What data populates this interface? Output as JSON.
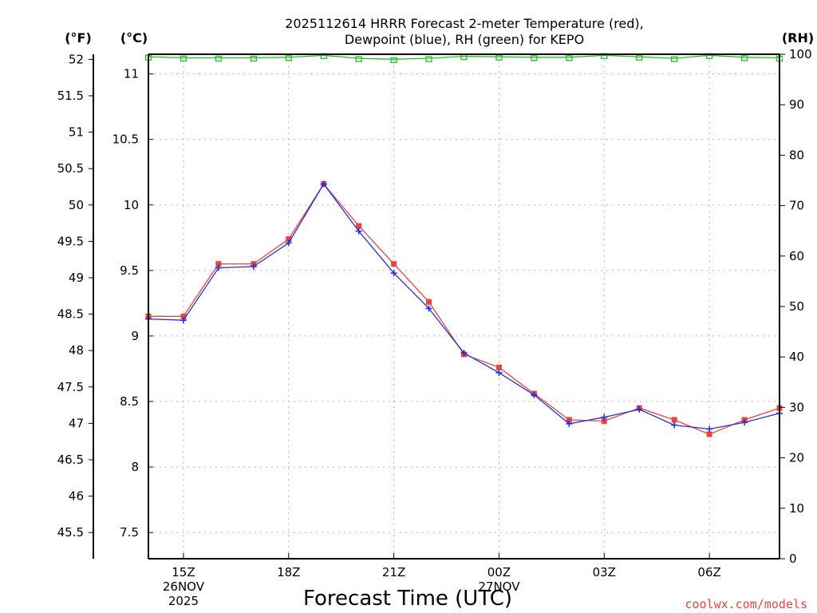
{
  "chart_data": {
    "type": "line",
    "title_line1": "2025112614 HRRR Forecast 2-meter Temperature (red),",
    "title_line2": "Dewpoint (blue), RH (green) for KEPO",
    "xlabel": "Forecast Time (UTC)",
    "credit": "coolwx.com/models",
    "units": {
      "fahrenheit": "(°F)",
      "celsius": "(°C)",
      "rh": "(RH)"
    },
    "x_hours": [
      14,
      15,
      16,
      17,
      18,
      19,
      20,
      21,
      22,
      23,
      24,
      25,
      26,
      27,
      28,
      29,
      30,
      31,
      32
    ],
    "x_range": [
      14,
      32
    ],
    "x_ticks": [
      {
        "hour": 15,
        "lines": [
          "15Z",
          "26NOV",
          "2025"
        ]
      },
      {
        "hour": 18,
        "lines": [
          "18Z"
        ]
      },
      {
        "hour": 21,
        "lines": [
          "21Z"
        ]
      },
      {
        "hour": 24,
        "lines": [
          "00Z",
          "27NOV"
        ]
      },
      {
        "hour": 27,
        "lines": [
          "03Z"
        ]
      },
      {
        "hour": 30,
        "lines": [
          "06Z"
        ]
      }
    ],
    "celsius_range": [
      7.3,
      11.15
    ],
    "celsius_ticks": [
      "7.5",
      "8",
      "8.5",
      "9",
      "9.5",
      "10",
      "10.5",
      "11"
    ],
    "fahrenheit_ticks": [
      "45.5",
      "46",
      "46.5",
      "47",
      "47.5",
      "48",
      "48.5",
      "49",
      "49.5",
      "50",
      "50.5",
      "51",
      "51.5",
      "52"
    ],
    "rh_range": [
      0,
      100
    ],
    "rh_ticks": [
      "0",
      "10",
      "20",
      "30",
      "40",
      "50",
      "60",
      "70",
      "80",
      "90",
      "100"
    ],
    "series": [
      {
        "name": "2-meter Temperature",
        "unit": "C",
        "color": "#e8453c",
        "marker": "square",
        "values": [
          9.15,
          9.15,
          9.55,
          9.55,
          9.74,
          10.16,
          9.84,
          9.55,
          9.26,
          8.86,
          8.76,
          8.56,
          8.36,
          8.35,
          8.45,
          8.36,
          8.25,
          8.36,
          8.45
        ]
      },
      {
        "name": "Dewpoint",
        "unit": "C",
        "color": "#2230e0",
        "marker": "plus",
        "values": [
          9.13,
          9.12,
          9.52,
          9.53,
          9.71,
          10.16,
          9.8,
          9.48,
          9.21,
          8.87,
          8.72,
          8.55,
          8.33,
          8.38,
          8.44,
          8.32,
          8.29,
          8.34,
          8.41
        ]
      },
      {
        "name": "RH",
        "unit": "%",
        "color": "#22c022",
        "marker": "open-square",
        "values": [
          99.5,
          99.3,
          99.3,
          99.3,
          99.4,
          99.8,
          99.2,
          99.0,
          99.2,
          99.6,
          99.5,
          99.4,
          99.4,
          99.8,
          99.5,
          99.2,
          99.8,
          99.4,
          99.3
        ]
      }
    ]
  }
}
